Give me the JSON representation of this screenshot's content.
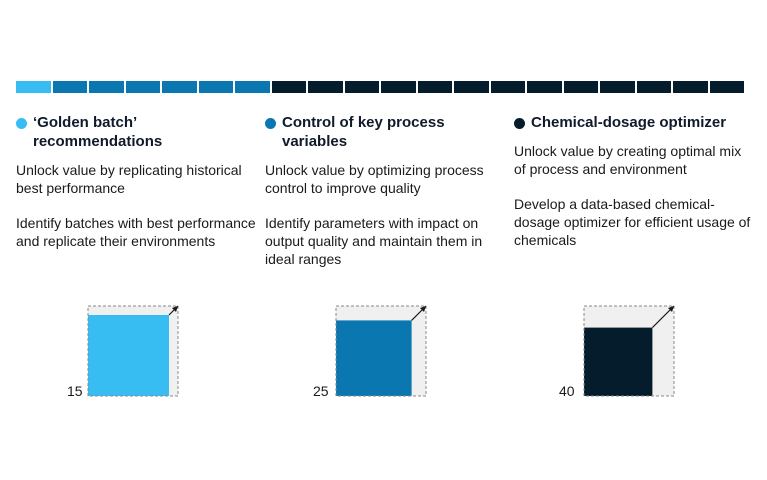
{
  "colors": {
    "light_blue": "#38bdf3",
    "mid_blue": "#0b77b1",
    "navy": "#051c2c",
    "outer_fill": "#f0f0f0",
    "dashed": "#888888"
  },
  "progress_bar": {
    "total_segments": 20,
    "segments": [
      {
        "color": "#38bdf3"
      },
      {
        "color": "#0b77b1"
      },
      {
        "color": "#0b77b1"
      },
      {
        "color": "#0b77b1"
      },
      {
        "color": "#0b77b1"
      },
      {
        "color": "#0b77b1"
      },
      {
        "color": "#0b77b1"
      },
      {
        "color": "#051c2c"
      },
      {
        "color": "#051c2c"
      },
      {
        "color": "#051c2c"
      },
      {
        "color": "#051c2c"
      },
      {
        "color": "#051c2c"
      },
      {
        "color": "#051c2c"
      },
      {
        "color": "#051c2c"
      },
      {
        "color": "#051c2c"
      },
      {
        "color": "#051c2c"
      },
      {
        "color": "#051c2c"
      },
      {
        "color": "#051c2c"
      },
      {
        "color": "#051c2c"
      },
      {
        "color": "#051c2c"
      }
    ]
  },
  "columns": [
    {
      "title": "‘Golden batch’ recommendations",
      "color": "#38bdf3",
      "text_1": "Unlock value by replicating historical best performance",
      "text_2": "Identify batches with best performance and replicate their environments",
      "value": "15",
      "inner_fraction": 0.9
    },
    {
      "title": "Control of key process variables",
      "color": "#0b77b1",
      "text_1": "Unlock value by optimizing process control to improve quality",
      "text_2": "Identify parameters with impact on output quality and maintain them in ideal ranges",
      "value": "25",
      "inner_fraction": 0.84
    },
    {
      "title": "Chemical-dosage optimizer",
      "color": "#051c2c",
      "text_1": "Unlock value by creating optimal mix of process and environment",
      "text_2": "Develop a data-based chemical-dosage optimizer for efficient usage of chemicals",
      "value": "40",
      "inner_fraction": 0.76
    }
  ]
}
